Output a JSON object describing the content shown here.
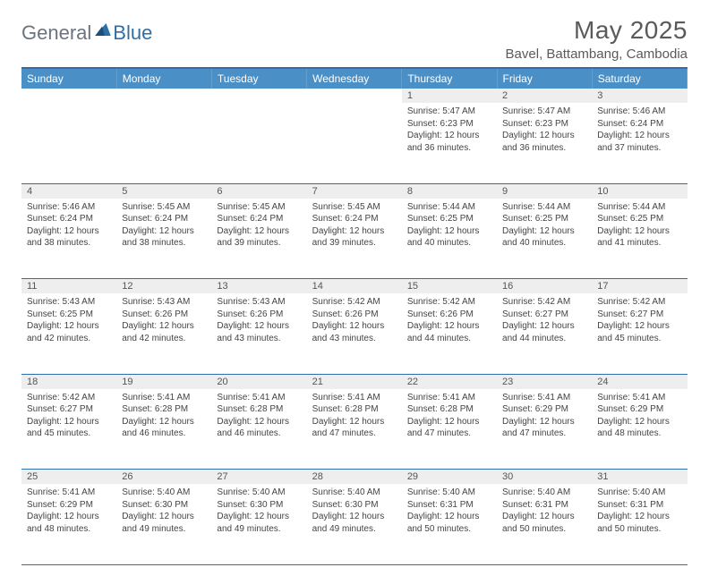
{
  "brand": {
    "part1": "General",
    "part2": "Blue"
  },
  "title": "May 2025",
  "location": "Bavel, Battambang, Cambodia",
  "colors": {
    "header_bg": "#4a90c7",
    "header_text": "#ffffff",
    "accent_line": "#2f6fa7",
    "daynum_bg": "#eeeeee",
    "text": "#444444",
    "title_text": "#5a5a5a"
  },
  "weekdays": [
    "Sunday",
    "Monday",
    "Tuesday",
    "Wednesday",
    "Thursday",
    "Friday",
    "Saturday"
  ],
  "first_weekday_index": 4,
  "days": [
    {
      "n": 1,
      "sr": "5:47 AM",
      "ss": "6:23 PM",
      "dl": "12 hours and 36 minutes."
    },
    {
      "n": 2,
      "sr": "5:47 AM",
      "ss": "6:23 PM",
      "dl": "12 hours and 36 minutes."
    },
    {
      "n": 3,
      "sr": "5:46 AM",
      "ss": "6:24 PM",
      "dl": "12 hours and 37 minutes."
    },
    {
      "n": 4,
      "sr": "5:46 AM",
      "ss": "6:24 PM",
      "dl": "12 hours and 38 minutes."
    },
    {
      "n": 5,
      "sr": "5:45 AM",
      "ss": "6:24 PM",
      "dl": "12 hours and 38 minutes."
    },
    {
      "n": 6,
      "sr": "5:45 AM",
      "ss": "6:24 PM",
      "dl": "12 hours and 39 minutes."
    },
    {
      "n": 7,
      "sr": "5:45 AM",
      "ss": "6:24 PM",
      "dl": "12 hours and 39 minutes."
    },
    {
      "n": 8,
      "sr": "5:44 AM",
      "ss": "6:25 PM",
      "dl": "12 hours and 40 minutes."
    },
    {
      "n": 9,
      "sr": "5:44 AM",
      "ss": "6:25 PM",
      "dl": "12 hours and 40 minutes."
    },
    {
      "n": 10,
      "sr": "5:44 AM",
      "ss": "6:25 PM",
      "dl": "12 hours and 41 minutes."
    },
    {
      "n": 11,
      "sr": "5:43 AM",
      "ss": "6:25 PM",
      "dl": "12 hours and 42 minutes."
    },
    {
      "n": 12,
      "sr": "5:43 AM",
      "ss": "6:26 PM",
      "dl": "12 hours and 42 minutes."
    },
    {
      "n": 13,
      "sr": "5:43 AM",
      "ss": "6:26 PM",
      "dl": "12 hours and 43 minutes."
    },
    {
      "n": 14,
      "sr": "5:42 AM",
      "ss": "6:26 PM",
      "dl": "12 hours and 43 minutes."
    },
    {
      "n": 15,
      "sr": "5:42 AM",
      "ss": "6:26 PM",
      "dl": "12 hours and 44 minutes."
    },
    {
      "n": 16,
      "sr": "5:42 AM",
      "ss": "6:27 PM",
      "dl": "12 hours and 44 minutes."
    },
    {
      "n": 17,
      "sr": "5:42 AM",
      "ss": "6:27 PM",
      "dl": "12 hours and 45 minutes."
    },
    {
      "n": 18,
      "sr": "5:42 AM",
      "ss": "6:27 PM",
      "dl": "12 hours and 45 minutes."
    },
    {
      "n": 19,
      "sr": "5:41 AM",
      "ss": "6:28 PM",
      "dl": "12 hours and 46 minutes."
    },
    {
      "n": 20,
      "sr": "5:41 AM",
      "ss": "6:28 PM",
      "dl": "12 hours and 46 minutes."
    },
    {
      "n": 21,
      "sr": "5:41 AM",
      "ss": "6:28 PM",
      "dl": "12 hours and 47 minutes."
    },
    {
      "n": 22,
      "sr": "5:41 AM",
      "ss": "6:28 PM",
      "dl": "12 hours and 47 minutes."
    },
    {
      "n": 23,
      "sr": "5:41 AM",
      "ss": "6:29 PM",
      "dl": "12 hours and 47 minutes."
    },
    {
      "n": 24,
      "sr": "5:41 AM",
      "ss": "6:29 PM",
      "dl": "12 hours and 48 minutes."
    },
    {
      "n": 25,
      "sr": "5:41 AM",
      "ss": "6:29 PM",
      "dl": "12 hours and 48 minutes."
    },
    {
      "n": 26,
      "sr": "5:40 AM",
      "ss": "6:30 PM",
      "dl": "12 hours and 49 minutes."
    },
    {
      "n": 27,
      "sr": "5:40 AM",
      "ss": "6:30 PM",
      "dl": "12 hours and 49 minutes."
    },
    {
      "n": 28,
      "sr": "5:40 AM",
      "ss": "6:30 PM",
      "dl": "12 hours and 49 minutes."
    },
    {
      "n": 29,
      "sr": "5:40 AM",
      "ss": "6:31 PM",
      "dl": "12 hours and 50 minutes."
    },
    {
      "n": 30,
      "sr": "5:40 AM",
      "ss": "6:31 PM",
      "dl": "12 hours and 50 minutes."
    },
    {
      "n": 31,
      "sr": "5:40 AM",
      "ss": "6:31 PM",
      "dl": "12 hours and 50 minutes."
    }
  ],
  "labels": {
    "sunrise": "Sunrise:",
    "sunset": "Sunset:",
    "daylight": "Daylight:"
  }
}
